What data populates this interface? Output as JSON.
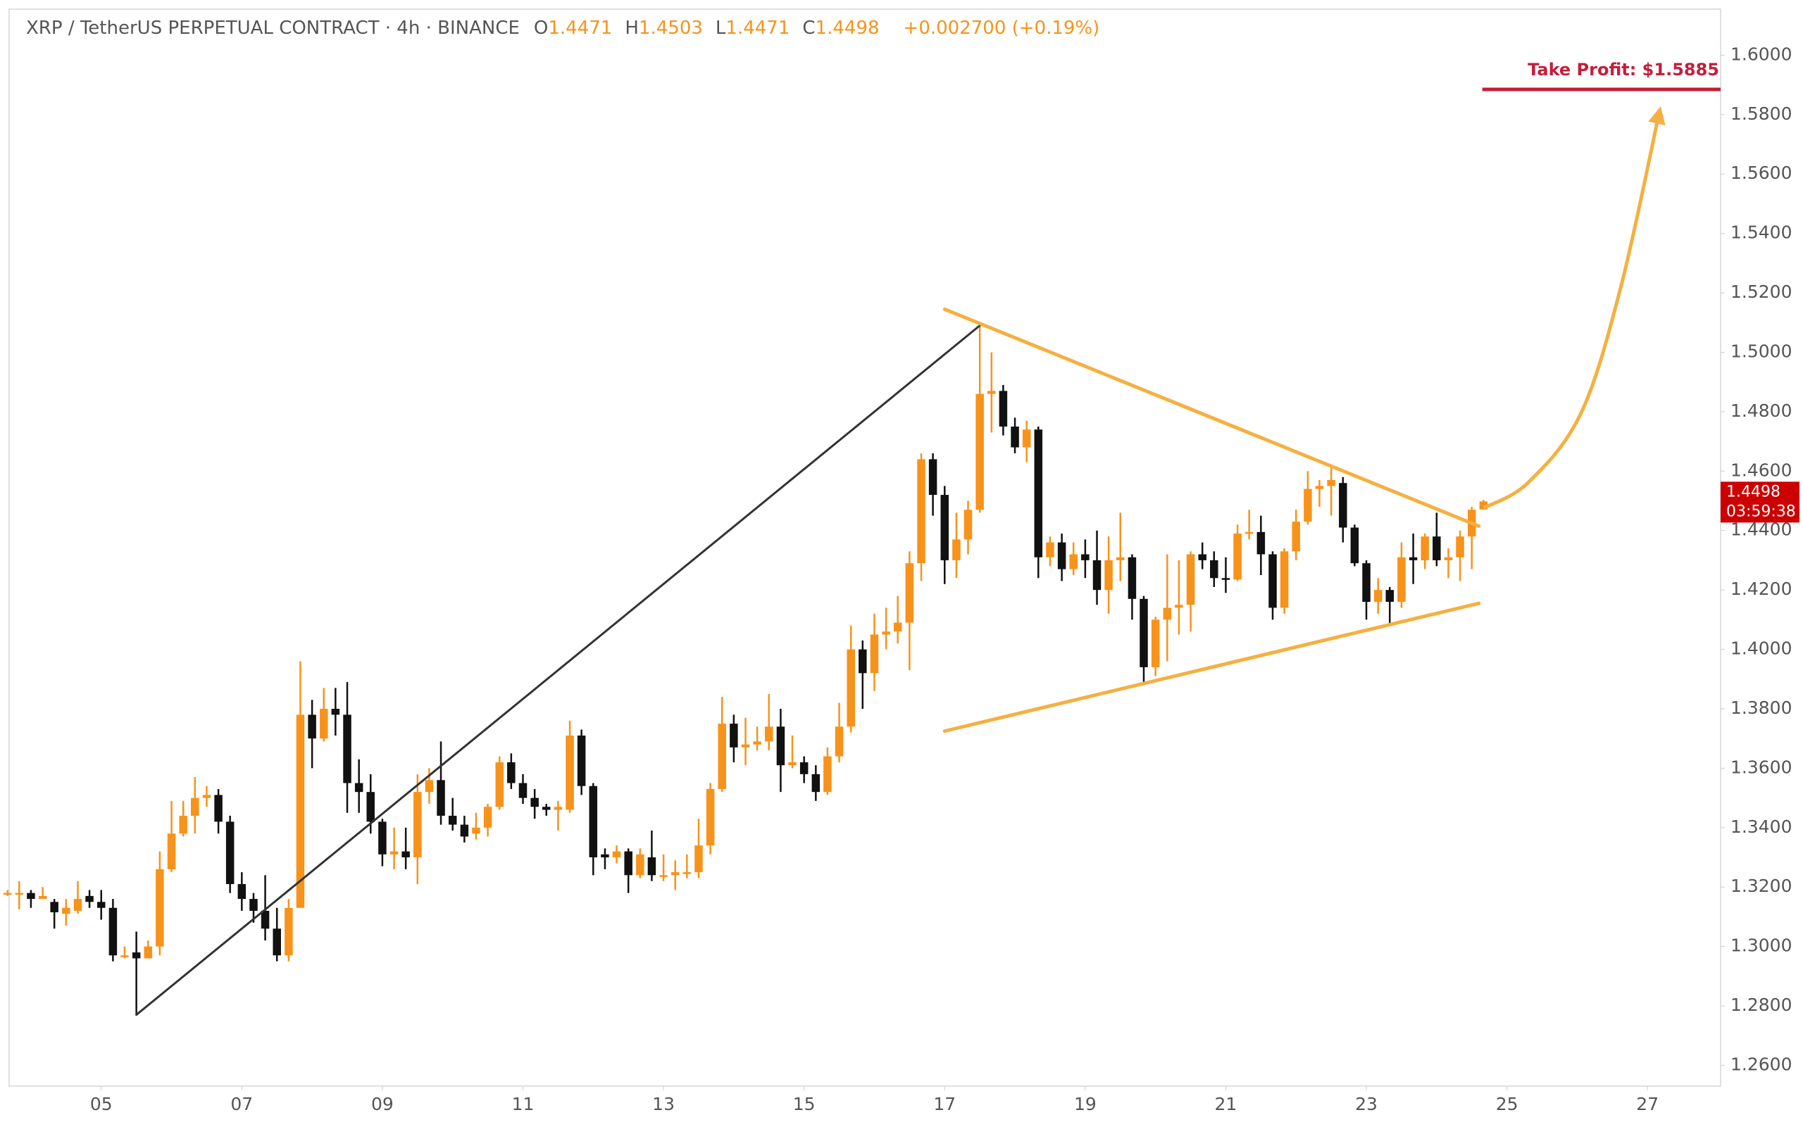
{
  "chart_data": {
    "type": "candlestick",
    "header": {
      "title": "XRP / TetherUS PERPETUAL CONTRACT · 4h · BINANCE",
      "ohlc": [
        {
          "label": "O",
          "value": 1.4471
        },
        {
          "label": "H",
          "value": 1.4503
        },
        {
          "label": "L",
          "value": 1.4471
        },
        {
          "label": "C",
          "value": 1.4498
        }
      ],
      "change": "+0.002700 (+0.19%)"
    },
    "up_color": "#f7931a",
    "down_color": "#111111",
    "x": [
      3.667,
      3.833,
      4,
      4.167,
      4.333,
      4.5,
      4.667,
      4.833,
      5,
      5.167,
      5.333,
      5.5,
      5.667,
      5.833,
      6,
      6.167,
      6.333,
      6.5,
      6.667,
      6.833,
      7,
      7.167,
      7.333,
      7.5,
      7.667,
      7.833,
      8,
      8.167,
      8.333,
      8.5,
      8.667,
      8.833,
      9,
      9.167,
      9.333,
      9.5,
      9.667,
      9.833,
      10,
      10.167,
      10.333,
      10.5,
      10.667,
      10.833,
      11,
      11.167,
      11.333,
      11.5,
      11.667,
      11.833,
      12,
      12.167,
      12.333,
      12.5,
      12.667,
      12.833,
      13,
      13.167,
      13.333,
      13.5,
      13.667,
      13.833,
      14,
      14.167,
      14.333,
      14.5,
      14.667,
      14.833,
      15,
      15.167,
      15.333,
      15.5,
      15.667,
      15.833,
      16,
      16.167,
      16.333,
      16.5,
      16.667,
      16.833,
      17,
      17.167,
      17.333,
      17.5,
      17.667,
      17.833,
      18,
      18.167,
      18.333,
      18.5,
      18.667,
      18.833,
      19,
      19.167,
      19.333,
      19.5,
      19.667,
      19.833,
      20,
      20.167,
      20.333,
      20.5,
      20.667,
      20.833,
      21,
      21.167,
      21.333,
      21.5,
      21.667,
      21.833,
      22,
      22.167,
      22.333,
      22.5,
      22.667,
      22.833,
      23,
      23.167,
      23.333,
      23.5,
      23.667,
      23.833,
      24,
      24.167,
      24.333,
      24.5,
      24.667
    ],
    "open": [
      1.318,
      1.3175,
      1.318,
      1.316,
      1.315,
      1.311,
      1.312,
      1.317,
      1.315,
      1.313,
      1.297,
      1.298,
      1.296,
      1.3,
      1.326,
      1.338,
      1.344,
      1.35,
      1.351,
      1.342,
      1.321,
      1.316,
      1.312,
      1.306,
      1.297,
      1.313,
      1.378,
      1.37,
      1.38,
      1.378,
      1.355,
      1.352,
      1.342,
      1.331,
      1.332,
      1.33,
      1.352,
      1.356,
      1.344,
      1.341,
      1.338,
      1.34,
      1.347,
      1.362,
      1.355,
      1.35,
      1.347,
      1.346,
      1.346,
      1.371,
      1.354,
      1.331,
      1.33,
      1.332,
      1.324,
      1.33,
      1.324,
      1.324,
      1.325,
      1.325,
      1.334,
      1.353,
      1.375,
      1.367,
      1.368,
      1.369,
      1.374,
      1.361,
      1.362,
      1.358,
      1.352,
      1.364,
      1.374,
      1.4,
      1.392,
      1.405,
      1.406,
      1.409,
      1.429,
      1.464,
      1.452,
      1.43,
      1.437,
      1.447,
      1.486,
      1.487,
      1.475,
      1.468,
      1.474,
      1.431,
      1.436,
      1.427,
      1.432,
      1.43,
      1.42,
      1.43,
      1.431,
      1.417,
      1.394,
      1.41,
      1.414,
      1.415,
      1.432,
      1.43,
      1.424,
      1.4235,
      1.439,
      1.4395,
      1.432,
      1.414,
      1.433,
      1.443,
      1.454,
      1.455,
      1.456,
      1.441,
      1.429,
      1.416,
      1.42,
      1.416,
      1.431,
      1.43,
      1.438,
      1.43,
      1.431,
      1.438,
      1.4471
    ],
    "high": [
      1.319,
      1.322,
      1.319,
      1.32,
      1.316,
      1.316,
      1.322,
      1.319,
      1.319,
      1.316,
      1.3,
      1.305,
      1.302,
      1.332,
      1.349,
      1.349,
      1.357,
      1.354,
      1.353,
      1.344,
      1.325,
      1.318,
      1.324,
      1.313,
      1.316,
      1.396,
      1.383,
      1.387,
      1.387,
      1.389,
      1.363,
      1.358,
      1.343,
      1.34,
      1.34,
      1.358,
      1.36,
      1.369,
      1.35,
      1.344,
      1.345,
      1.348,
      1.364,
      1.365,
      1.358,
      1.353,
      1.348,
      1.349,
      1.376,
      1.373,
      1.355,
      1.333,
      1.334,
      1.333,
      1.333,
      1.339,
      1.331,
      1.329,
      1.331,
      1.343,
      1.355,
      1.384,
      1.378,
      1.377,
      1.374,
      1.385,
      1.38,
      1.371,
      1.364,
      1.361,
      1.367,
      1.382,
      1.408,
      1.403,
      1.412,
      1.414,
      1.418,
      1.433,
      1.466,
      1.466,
      1.455,
      1.446,
      1.45,
      1.509,
      1.5,
      1.489,
      1.478,
      1.477,
      1.475,
      1.438,
      1.439,
      1.436,
      1.437,
      1.44,
      1.438,
      1.446,
      1.432,
      1.418,
      1.411,
      1.432,
      1.43,
      1.433,
      1.436,
      1.433,
      1.431,
      1.442,
      1.447,
      1.445,
      1.433,
      1.434,
      1.447,
      1.46,
      1.457,
      1.462,
      1.458,
      1.442,
      1.43,
      1.424,
      1.421,
      1.436,
      1.439,
      1.439,
      1.446,
      1.434,
      1.44,
      1.448,
      1.4503
    ],
    "low": [
      1.317,
      1.3125,
      1.313,
      1.316,
      1.306,
      1.307,
      1.311,
      1.313,
      1.309,
      1.295,
      1.296,
      1.277,
      1.296,
      1.297,
      1.325,
      1.337,
      1.338,
      1.347,
      1.338,
      1.318,
      1.312,
      1.308,
      1.302,
      1.295,
      1.295,
      1.313,
      1.36,
      1.369,
      1.371,
      1.345,
      1.345,
      1.338,
      1.327,
      1.326,
      1.326,
      1.321,
      1.348,
      1.341,
      1.339,
      1.335,
      1.336,
      1.337,
      1.346,
      1.353,
      1.348,
      1.343,
      1.344,
      1.339,
      1.345,
      1.351,
      1.324,
      1.326,
      1.328,
      1.318,
      1.323,
      1.322,
      1.322,
      1.319,
      1.323,
      1.323,
      1.331,
      1.352,
      1.362,
      1.361,
      1.366,
      1.366,
      1.352,
      1.36,
      1.355,
      1.349,
      1.351,
      1.362,
      1.372,
      1.38,
      1.386,
      1.4,
      1.402,
      1.393,
      1.423,
      1.445,
      1.422,
      1.424,
      1.432,
      1.446,
      1.473,
      1.472,
      1.466,
      1.463,
      1.424,
      1.428,
      1.423,
      1.425,
      1.424,
      1.415,
      1.412,
      1.423,
      1.41,
      1.389,
      1.391,
      1.396,
      1.405,
      1.406,
      1.427,
      1.421,
      1.419,
      1.423,
      1.437,
      1.425,
      1.41,
      1.412,
      1.43,
      1.442,
      1.448,
      1.445,
      1.436,
      1.428,
      1.41,
      1.412,
      1.408,
      1.414,
      1.422,
      1.427,
      1.428,
      1.424,
      1.423,
      1.427,
      1.4471
    ],
    "close": [
      1.318,
      1.318,
      1.316,
      1.317,
      1.3115,
      1.313,
      1.316,
      1.315,
      1.313,
      1.297,
      1.297,
      1.296,
      1.3,
      1.326,
      1.338,
      1.344,
      1.35,
      1.351,
      1.342,
      1.321,
      1.316,
      1.312,
      1.306,
      1.297,
      1.313,
      1.378,
      1.37,
      1.38,
      1.378,
      1.355,
      1.352,
      1.342,
      1.331,
      1.332,
      1.33,
      1.352,
      1.356,
      1.344,
      1.341,
      1.337,
      1.34,
      1.347,
      1.362,
      1.355,
      1.35,
      1.347,
      1.346,
      1.347,
      1.371,
      1.354,
      1.33,
      1.33,
      1.332,
      1.324,
      1.331,
      1.324,
      1.324,
      1.325,
      1.325,
      1.334,
      1.353,
      1.375,
      1.367,
      1.368,
      1.369,
      1.374,
      1.361,
      1.362,
      1.358,
      1.352,
      1.364,
      1.374,
      1.4,
      1.392,
      1.405,
      1.406,
      1.409,
      1.429,
      1.464,
      1.452,
      1.43,
      1.437,
      1.447,
      1.486,
      1.487,
      1.475,
      1.468,
      1.474,
      1.431,
      1.436,
      1.427,
      1.432,
      1.43,
      1.42,
      1.43,
      1.431,
      1.417,
      1.394,
      1.41,
      1.414,
      1.415,
      1.432,
      1.43,
      1.424,
      1.4235,
      1.439,
      1.4395,
      1.432,
      1.414,
      1.433,
      1.443,
      1.454,
      1.455,
      1.457,
      1.441,
      1.429,
      1.416,
      1.42,
      1.416,
      1.431,
      1.43,
      1.438,
      1.43,
      1.431,
      1.438,
      1.447,
      1.4498
    ],
    "xlim": [
      3.69,
      28.04
    ],
    "ylim": [
      1.253,
      1.6155
    ],
    "xticks": [
      {
        "value": 5,
        "label": "05"
      },
      {
        "value": 7,
        "label": "07"
      },
      {
        "value": 9,
        "label": "09"
      },
      11,
      13,
      15,
      17,
      19,
      21,
      23,
      25,
      27
    ],
    "yticks": [
      {
        "value": 1.26,
        "label": "1.2600"
      },
      {
        "value": 1.28,
        "label": "1.2800"
      },
      {
        "value": 1.3,
        "label": "1.3000"
      },
      {
        "value": 1.32,
        "label": "1.3200"
      },
      {
        "value": 1.34,
        "label": "1.3400"
      },
      {
        "value": 1.36,
        "label": "1.3600"
      },
      {
        "value": 1.38,
        "label": "1.3800"
      },
      {
        "value": 1.4,
        "label": "1.4000"
      },
      {
        "value": 1.42,
        "label": "1.4200"
      },
      {
        "value": 1.44,
        "label": "1.4400"
      },
      {
        "value": 1.46,
        "label": "1.4600"
      },
      {
        "value": 1.48,
        "label": "1.4800"
      },
      {
        "value": 1.5,
        "label": "1.5000"
      },
      {
        "value": 1.52,
        "label": "1.5200"
      },
      {
        "value": 1.54,
        "label": "1.5400"
      },
      {
        "value": 1.56,
        "label": "1.5600"
      },
      {
        "value": 1.58,
        "label": "1.5800"
      },
      {
        "value": 1.6,
        "label": "1.6000"
      }
    ],
    "price_tag": {
      "value": 1.4498,
      "countdown": "03:59:38",
      "color": "#cc0000"
    },
    "take_profit": {
      "label": "Take Profit: $1.5885",
      "value": 1.5885,
      "x_start": 24.65,
      "color": "#c41e3a"
    },
    "trend_lines": [
      {
        "x": [
          5.5,
          17.5
        ],
        "y": [
          1.277,
          1.509
        ],
        "color": "#333333"
      },
      {
        "x": [
          17,
          24.6
        ],
        "y": [
          1.5145,
          1.4415
        ],
        "color": "#f5b041"
      },
      {
        "x": [
          17,
          24.6
        ],
        "y": [
          1.3725,
          1.4155
        ],
        "color": "#f5b041"
      }
    ],
    "projection": {
      "x": [
        24.67,
        25.3,
        26.05,
        26.62,
        27.16
      ],
      "y": [
        1.4476,
        1.4561,
        1.4793,
        1.5219,
        1.5799
      ],
      "color": "#f5b041"
    }
  }
}
